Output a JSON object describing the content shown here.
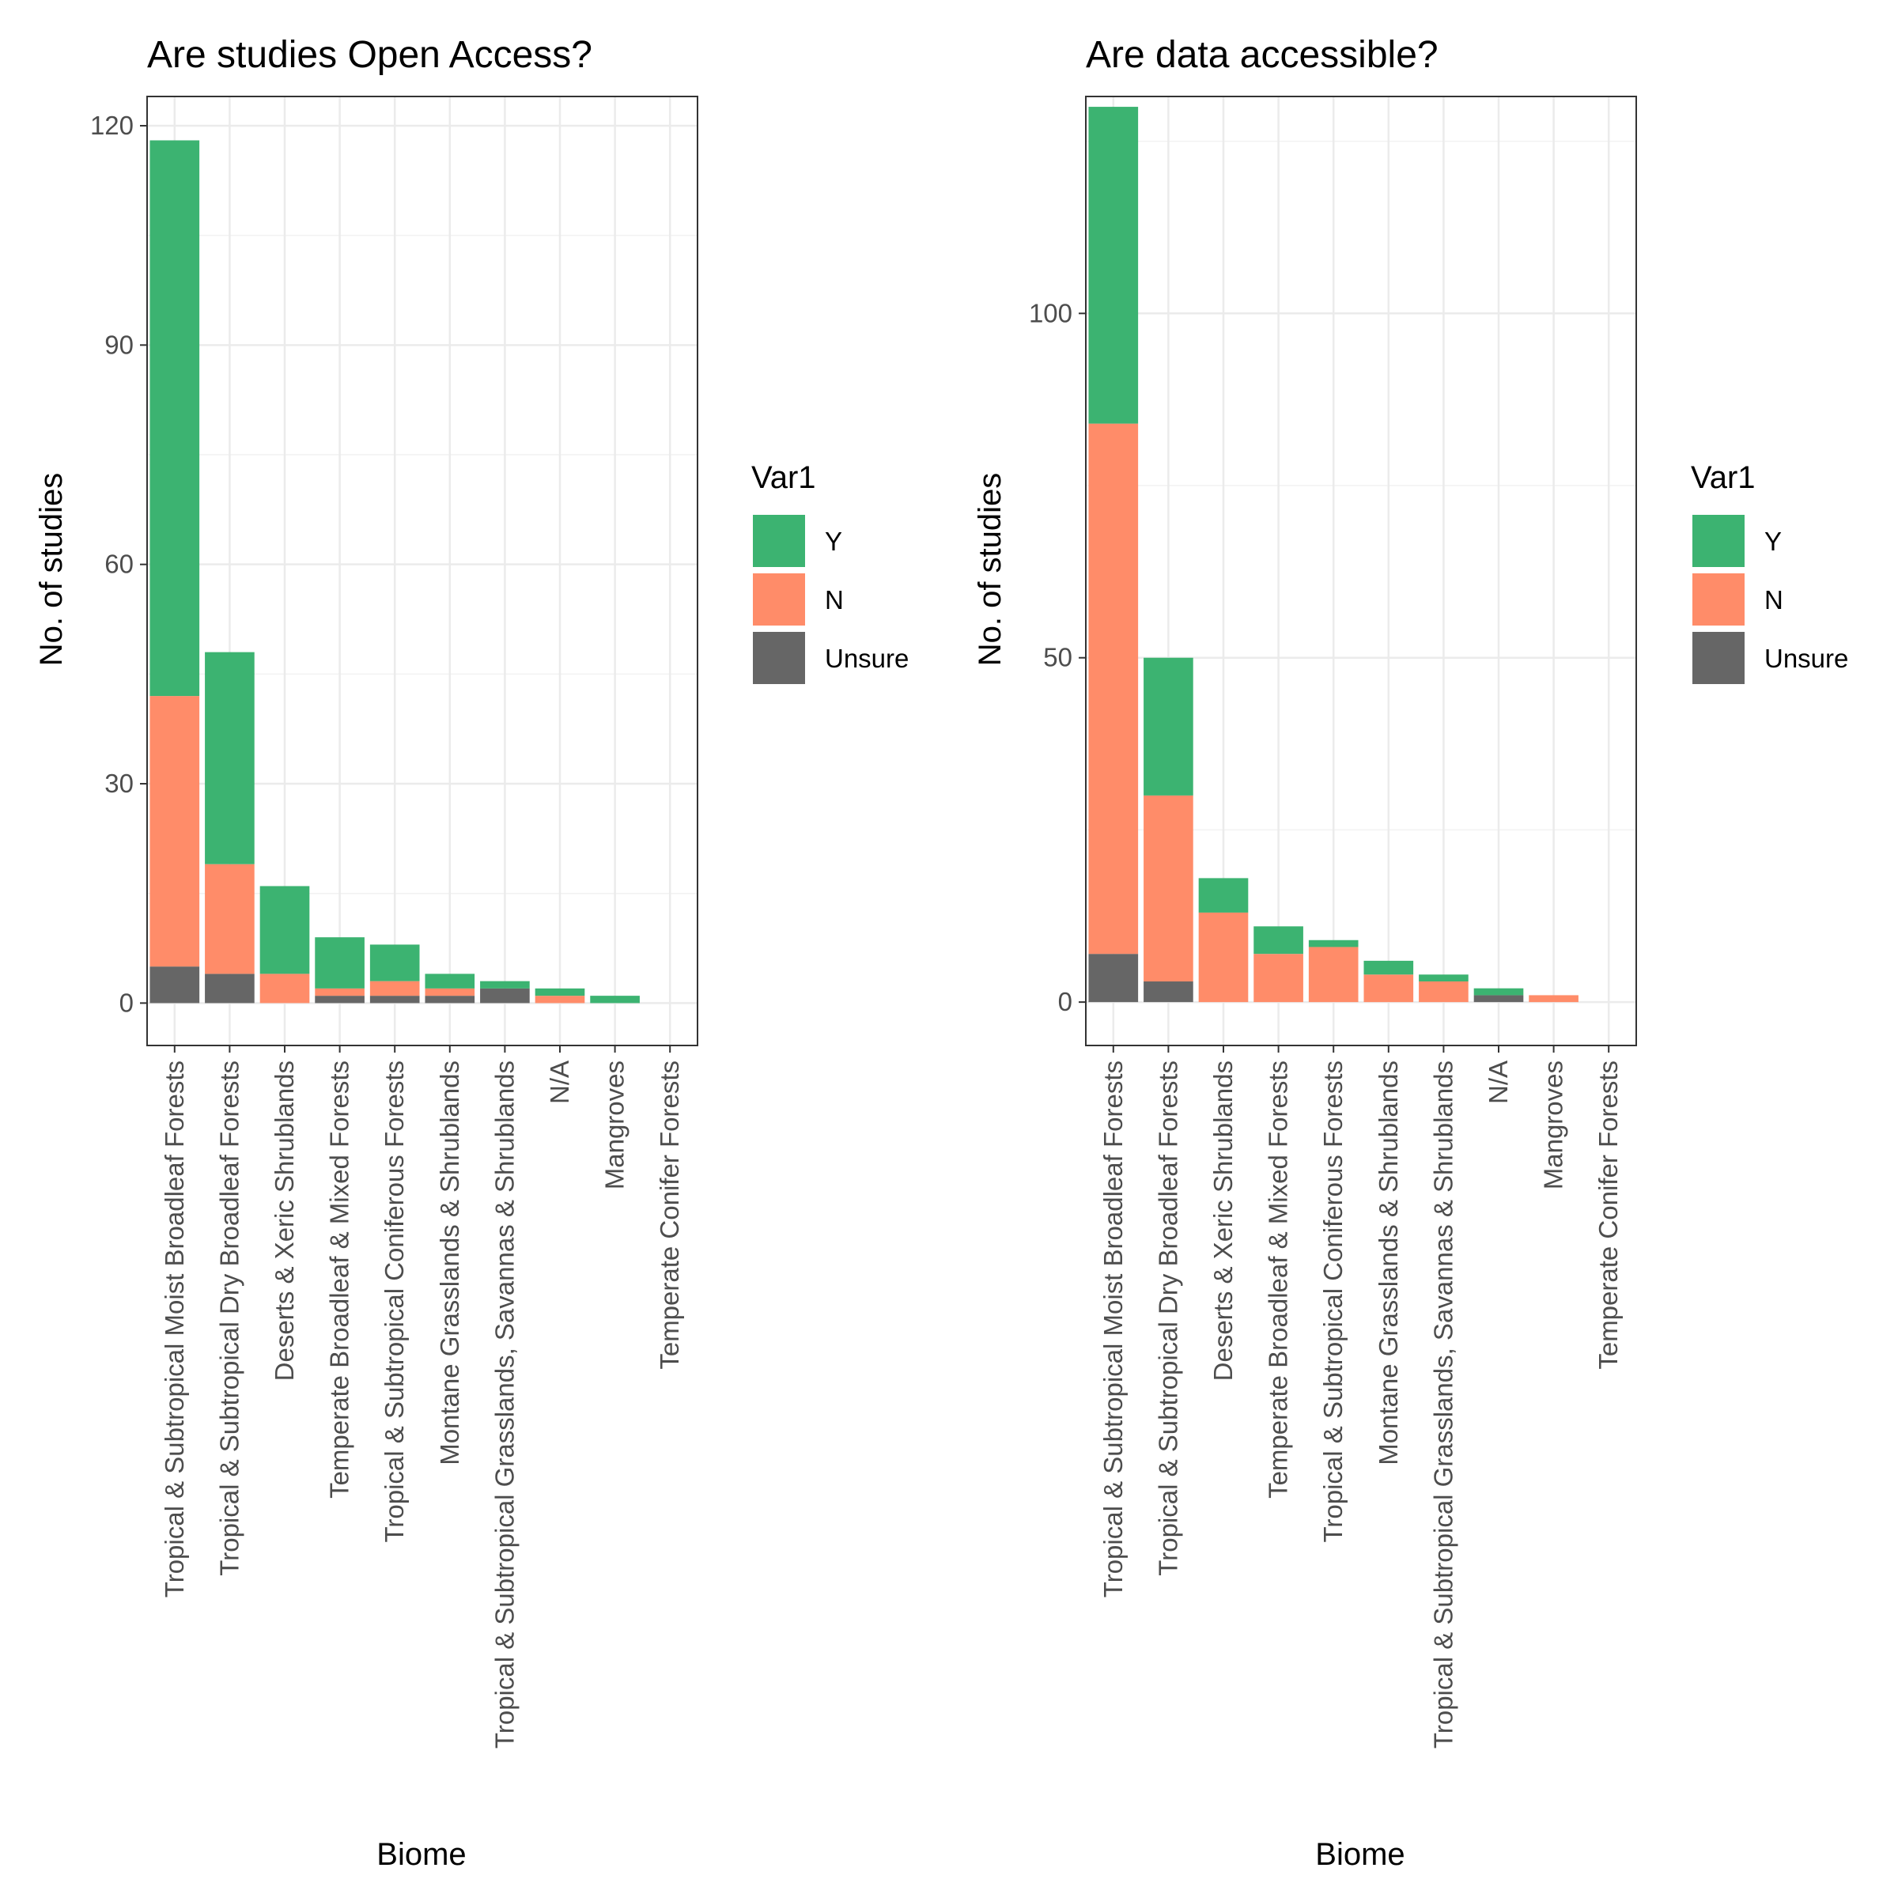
{
  "chart_data": [
    {
      "type": "bar",
      "stacked": true,
      "title": "Are studies Open Access?",
      "xlabel": "Biome",
      "ylabel": "No. of studies",
      "ylim": [
        -5.8,
        124
      ],
      "yticks": [
        0,
        30,
        60,
        90,
        120
      ],
      "grid": true,
      "legend": {
        "title": "Var1",
        "position": "right",
        "entries": [
          "Y",
          "N",
          "Unsure"
        ]
      },
      "categories": [
        "Tropical & Subtropical Moist Broadleaf Forests",
        "Tropical & Subtropical Dry Broadleaf Forests",
        "Deserts & Xeric Shrublands",
        "Temperate Broadleaf & Mixed Forests",
        "Tropical & Subtropical Coniferous Forests",
        "Montane Grasslands & Shrublands",
        "Tropical & Subtropical Grasslands, Savannas & Shrublands",
        "N/A",
        "Mangroves",
        "Temperate Conifer Forests"
      ],
      "series": [
        {
          "name": "Unsure",
          "values": [
            5,
            4,
            0,
            1,
            1,
            1,
            2,
            0,
            0,
            0
          ]
        },
        {
          "name": "N",
          "values": [
            37,
            15,
            4,
            1,
            2,
            1,
            0,
            1,
            0,
            0
          ]
        },
        {
          "name": "Y",
          "values": [
            76,
            29,
            12,
            7,
            5,
            2,
            1,
            1,
            1,
            0
          ]
        }
      ]
    },
    {
      "type": "bar",
      "stacked": true,
      "title": "Are data accessible?",
      "xlabel": "Biome",
      "ylabel": "No. of studies",
      "ylim": [
        -6.3,
        131.5
      ],
      "yticks": [
        0,
        50,
        100
      ],
      "grid": true,
      "legend": {
        "title": "Var1",
        "position": "right",
        "entries": [
          "Y",
          "N",
          "Unsure"
        ]
      },
      "categories": [
        "Tropical & Subtropical Moist Broadleaf Forests",
        "Tropical & Subtropical Dry Broadleaf Forests",
        "Deserts & Xeric Shrublands",
        "Temperate Broadleaf & Mixed Forests",
        "Tropical & Subtropical Coniferous Forests",
        "Montane Grasslands & Shrublands",
        "Tropical & Subtropical Grasslands, Savannas & Shrublands",
        "N/A",
        "Mangroves",
        "Temperate Conifer Forests"
      ],
      "series": [
        {
          "name": "Unsure",
          "values": [
            7,
            3,
            0,
            0,
            0,
            0,
            0,
            1,
            0,
            0
          ]
        },
        {
          "name": "N",
          "values": [
            77,
            27,
            13,
            7,
            8,
            4,
            3,
            0,
            1,
            0
          ]
        },
        {
          "name": "Y",
          "values": [
            46,
            20,
            5,
            4,
            1,
            2,
            1,
            1,
            0,
            0
          ]
        }
      ]
    }
  ],
  "colors": {
    "Y": "#3cb371",
    "N": "#ff8c69",
    "Unsure": "#666666"
  }
}
